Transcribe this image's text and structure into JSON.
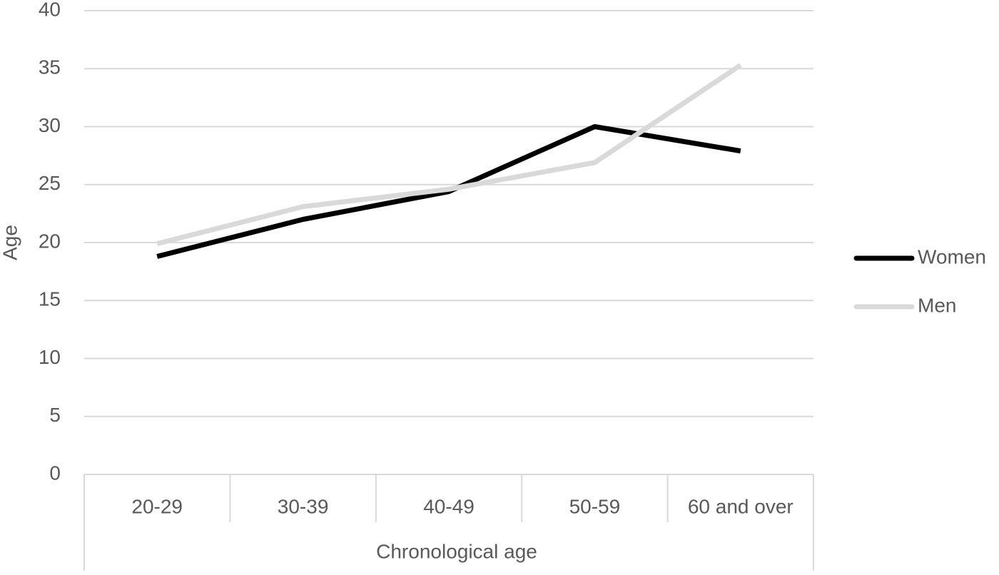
{
  "chart_data": {
    "type": "line",
    "xlabel": "Chronological age",
    "ylabel": "Age",
    "categories": [
      "20-29",
      "30-39",
      "40-49",
      "50-59",
      "60 and over"
    ],
    "series": [
      {
        "name": "Women",
        "color": "#000000",
        "values": [
          18.8,
          22.0,
          24.4,
          30.0,
          27.9
        ]
      },
      {
        "name": "Men",
        "color": "#d9d9d9",
        "values": [
          19.9,
          23.1,
          24.6,
          26.9,
          35.3
        ]
      }
    ],
    "ylim": [
      0,
      40
    ],
    "yticks": [
      0,
      5,
      10,
      15,
      20,
      25,
      30,
      35,
      40
    ],
    "grid": true,
    "legend": "right"
  }
}
